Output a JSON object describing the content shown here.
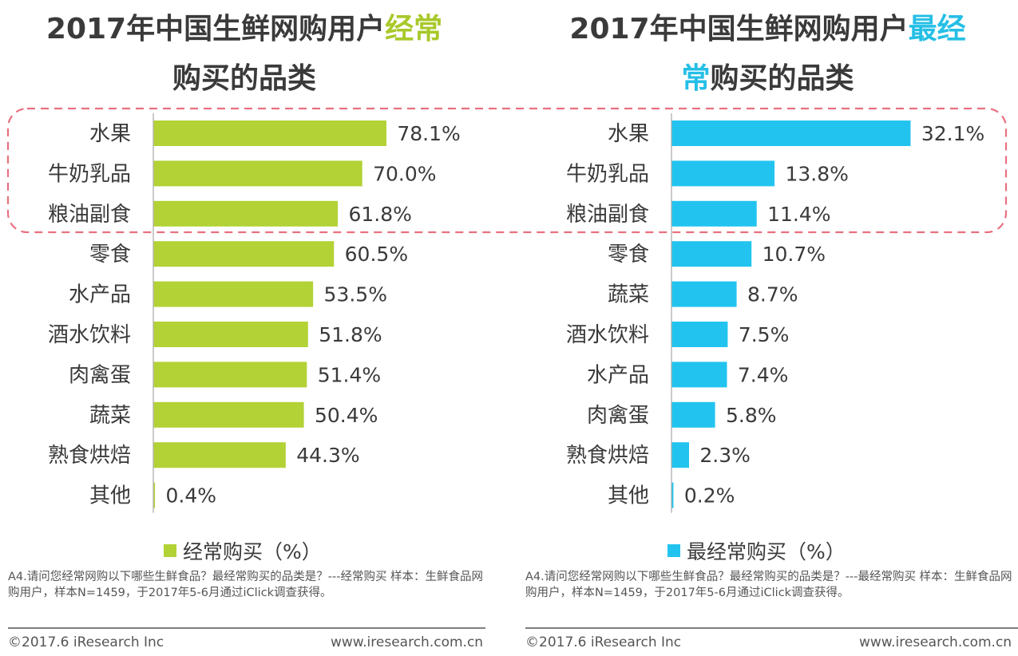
{
  "chart_data": [
    {
      "type": "bar",
      "orientation": "horizontal",
      "title_parts": [
        "2017年中国生鲜网购用户",
        "经常",
        "购买的品类"
      ],
      "title": "2017年中国生鲜网购用户经常购买的品类",
      "categories": [
        "水果",
        "牛奶乳品",
        "粮油副食",
        "零食",
        "水产品",
        "酒水饮料",
        "肉禽蛋",
        "蔬菜",
        "熟食烘焙",
        "其他"
      ],
      "values": [
        78.1,
        70.0,
        61.8,
        60.5,
        53.5,
        51.8,
        51.4,
        50.4,
        44.3,
        0.4
      ],
      "value_labels": [
        "78.1%",
        "70.0%",
        "61.8%",
        "60.5%",
        "53.5%",
        "51.8%",
        "51.4%",
        "50.4%",
        "44.3%",
        "0.4%"
      ],
      "series_name": "经常购买（%）",
      "color": "#b2d235",
      "highlight_color": "#a8c92a",
      "xlim": [
        0,
        100
      ],
      "legend_position": "bottom",
      "grid": false,
      "highlighted_categories": [
        "水果",
        "牛奶乳品",
        "粮油副食"
      ]
    },
    {
      "type": "bar",
      "orientation": "horizontal",
      "title_parts": [
        "2017年中国生鲜网购用户",
        "最经常",
        "购买的品类"
      ],
      "title": "2017年中国生鲜网购用户最经常购买的品类",
      "categories": [
        "水果",
        "牛奶乳品",
        "粮油副食",
        "零食",
        "蔬菜",
        "酒水饮料",
        "水产品",
        "肉禽蛋",
        "熟食烘焙",
        "其他"
      ],
      "values": [
        32.1,
        13.8,
        11.4,
        10.7,
        8.7,
        7.5,
        7.4,
        5.8,
        2.3,
        0.2
      ],
      "value_labels": [
        "32.1%",
        "13.8%",
        "11.4%",
        "10.7%",
        "8.7%",
        "7.5%",
        "7.4%",
        "5.8%",
        "2.3%",
        "0.2%"
      ],
      "series_name": "最经常购买（%）",
      "color": "#22c4ef",
      "highlight_color": "#25bfe6",
      "xlim": [
        0,
        40
      ],
      "legend_position": "bottom",
      "grid": false,
      "highlighted_categories": [
        "水果",
        "牛奶乳品",
        "粮油副食"
      ]
    }
  ],
  "left": {
    "title_a": "2017年中国生鲜网购用户",
    "title_hl": "经常",
    "title_b": "购买的品类",
    "legend": "经常购买（%）",
    "note": "A4.请问您经常网购以下哪些生鲜食品？最经常购买的品类是？---经常购买 样本：生鲜食品网购用户，样本N=1459，于2017年5-6月通过iClick调查获得。",
    "copyright": "©2017.6 iResearch Inc",
    "url": "www.iresearch.com.cn"
  },
  "right": {
    "title_a": "2017年中国生鲜网购用户",
    "title_hl1": "最经",
    "title_hl2": "常",
    "title_b": "购买的品类",
    "legend": "最经常购买（%）",
    "note": "A4.请问您经常网购以下哪些生鲜食品？最经常购买的品类是？---最经常购买 样本：生鲜食品网购用户，样本N=1459，于2017年5-6月通过iClick调查获得。",
    "copyright": "©2017.6 iResearch Inc",
    "url": "www.iresearch.com.cn"
  },
  "highlight_box_color": "#e8707f"
}
